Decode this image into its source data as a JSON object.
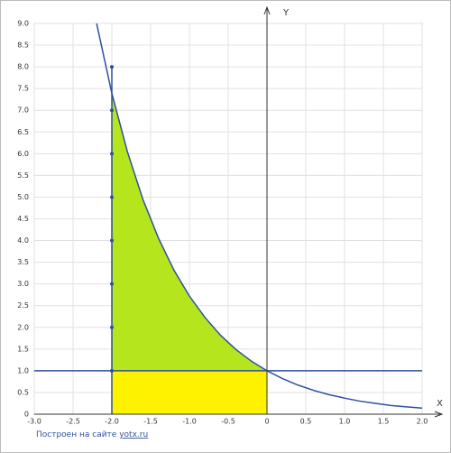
{
  "chart_data": {
    "type": "line",
    "x_label": "X",
    "y_label": "Y",
    "footer": "Построен на сайте",
    "footer_link": "yotx.ru",
    "xlim": [
      -3,
      2
    ],
    "ylim": [
      0,
      9
    ],
    "grid": true,
    "xticks": [
      {
        "value": -3,
        "label": "-3.0"
      },
      {
        "value": -2.5,
        "label": "-2.5"
      },
      {
        "value": -2,
        "label": "-2.0"
      },
      {
        "value": -1.5,
        "label": "-1.5"
      },
      {
        "value": -1,
        "label": "-1.0"
      },
      {
        "value": -0.5,
        "label": "-0.5"
      },
      0,
      0.5,
      {
        "value": 1,
        "label": "1.0"
      },
      1.5,
      {
        "value": 2,
        "label": "2.0"
      }
    ],
    "yticks": [
      0,
      0.5,
      {
        "value": 1,
        "label": "1.0"
      },
      1.5,
      {
        "value": 2,
        "label": "2.0"
      },
      2.5,
      {
        "value": 3,
        "label": "3.0"
      },
      3.5,
      {
        "value": 4,
        "label": "4.0"
      },
      4.5,
      {
        "value": 5,
        "label": "5.0"
      },
      5.5,
      {
        "value": 6,
        "label": "6.0"
      },
      6.5,
      {
        "value": 7,
        "label": "7.0"
      },
      7.5,
      {
        "value": 8,
        "label": "8.0"
      },
      8.5,
      {
        "value": 9,
        "label": "9.0"
      }
    ],
    "series": [
      {
        "kind": "area",
        "color": "#b5e61d",
        "base": 0,
        "x": [
          -2,
          0
        ],
        "values": [
          1,
          1
        ]
      },
      {
        "kind": "area",
        "color": "#b5e61d",
        "base": 1,
        "x": [
          -2,
          -1.8,
          -1.6,
          -1.4,
          -1.2,
          -1,
          -0.8,
          -0.6,
          -0.4,
          -0.2,
          0
        ],
        "values": [
          7.39,
          6.05,
          4.95,
          4.06,
          3.32,
          2.72,
          2.23,
          1.82,
          1.49,
          1.22,
          1
        ]
      },
      {
        "kind": "line",
        "color": "#2f4f9f",
        "x": [
          -3,
          2
        ],
        "values": [
          1,
          1
        ]
      },
      {
        "kind": "line",
        "color": "#2f4f9f",
        "x": [
          -2,
          -2
        ],
        "values": [
          0,
          8
        ]
      },
      {
        "kind": "line",
        "color": "#2f4f9f",
        "x": [
          -2.2,
          -2,
          -1.8,
          -1.6,
          -1.4,
          -1.2,
          -1,
          -0.8,
          -0.6,
          -0.4,
          -0.2,
          0,
          0.2,
          0.4,
          0.6,
          0.8,
          1,
          1.2,
          1.4,
          1.6,
          1.8,
          2
        ],
        "values": [
          9.03,
          7.39,
          6.05,
          4.95,
          4.06,
          3.32,
          2.72,
          2.23,
          1.82,
          1.49,
          1.22,
          1,
          0.82,
          0.67,
          0.55,
          0.45,
          0.37,
          0.3,
          0.25,
          0.2,
          0.17,
          0.14
        ]
      },
      {
        "kind": "points",
        "color": "#2f4f9f",
        "x": [
          -2,
          -2,
          -2,
          -2,
          -2,
          -2,
          -2,
          -2
        ],
        "values": [
          1,
          2,
          3,
          4,
          5,
          6,
          7,
          8
        ]
      }
    ]
  }
}
